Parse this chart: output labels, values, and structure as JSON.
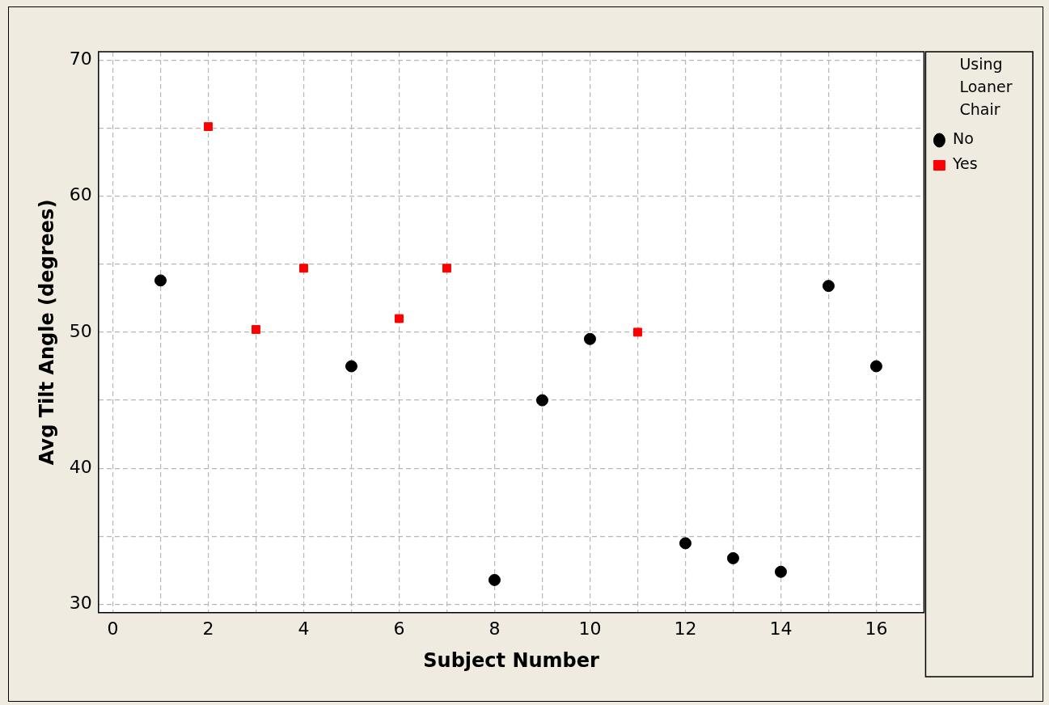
{
  "chart_data": {
    "type": "scatter",
    "xlabel": "Subject Number",
    "ylabel": "Avg Tilt Angle (degrees)",
    "legend_title": "Using Loaner Chair",
    "xlim": [
      -0.3,
      17
    ],
    "ylim": [
      29.4,
      70.6
    ],
    "xticks": [
      0,
      {
        "value": 1,
        "label": null
      },
      2,
      {
        "value": 3,
        "label": null
      },
      4,
      {
        "value": 5,
        "label": null
      },
      6,
      {
        "value": 7,
        "label": null
      },
      8,
      {
        "value": 9,
        "label": null
      },
      10,
      {
        "value": 11,
        "label": null
      },
      12,
      {
        "value": 13,
        "label": null
      },
      14,
      {
        "value": 15,
        "label": null
      },
      16
    ],
    "yticks": [
      30,
      {
        "value": 35,
        "label": null
      },
      40,
      {
        "value": 45,
        "label": null
      },
      50,
      {
        "value": 55,
        "label": null
      },
      60,
      {
        "value": 65,
        "label": null
      },
      70
    ],
    "grid": true,
    "legend": "right",
    "series": [
      {
        "name": "No",
        "color": "#000000",
        "marker": "circle",
        "x": [
          1,
          5,
          8,
          9,
          10,
          12,
          13,
          14,
          15,
          16
        ],
        "values": [
          53.8,
          47.5,
          31.8,
          45.0,
          49.5,
          34.5,
          33.4,
          32.4,
          53.4,
          47.5
        ]
      },
      {
        "name": "Yes",
        "color": "#ff0000",
        "marker": "square",
        "x": [
          2,
          3,
          4,
          6,
          7,
          11
        ],
        "values": [
          65.1,
          50.2,
          54.7,
          51.0,
          54.7,
          50.0
        ]
      }
    ]
  }
}
